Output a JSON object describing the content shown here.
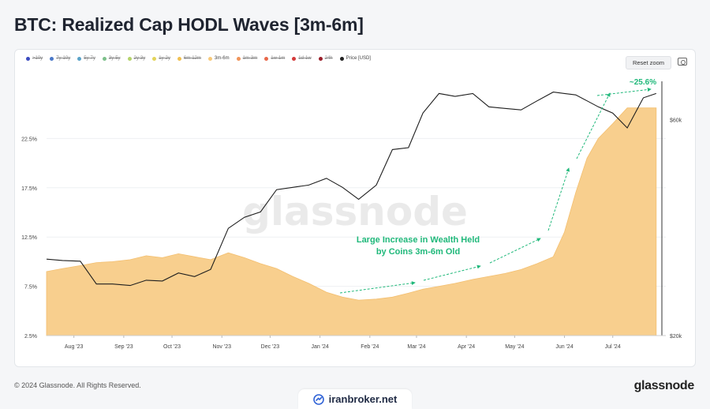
{
  "title": "BTC: Realized Cap HODL Waves [3m-6m]",
  "legend": [
    {
      "label": ">10y",
      "color": "#3b4cc0",
      "enabled": false
    },
    {
      "label": "7y-10y",
      "color": "#4a78c8",
      "enabled": false
    },
    {
      "label": "5y-7y",
      "color": "#5aa3c8",
      "enabled": false
    },
    {
      "label": "3y-5y",
      "color": "#7cc08a",
      "enabled": false
    },
    {
      "label": "2y-3y",
      "color": "#b4d36a",
      "enabled": false
    },
    {
      "label": "1y-2y",
      "color": "#e3d45a",
      "enabled": false
    },
    {
      "label": "6m-12m",
      "color": "#f0c050",
      "enabled": false
    },
    {
      "label": "3m-6m",
      "color": "#f7c97a",
      "enabled": true
    },
    {
      "label": "1m-3m",
      "color": "#f0945a",
      "enabled": false
    },
    {
      "label": "1w-1m",
      "color": "#e8684a",
      "enabled": false
    },
    {
      "label": "1d-1w",
      "color": "#d43a3a",
      "enabled": false
    },
    {
      "label": "24h",
      "color": "#9a1f2a",
      "enabled": false
    },
    {
      "label": "Price [USD]",
      "color": "#222222",
      "enabled": true
    }
  ],
  "reset_zoom_label": "Reset zoom",
  "camera_icon": "camera-icon",
  "watermark": "glassnode",
  "annotation_text": [
    "Large Increase in Wealth Held",
    "by Coins 3m-6m Old"
  ],
  "annotation_value": "~25.6%",
  "footer_copyright": "© 2024 Glassnode. All Rights Reserved.",
  "footer_brand": "glassnode",
  "broker_name": "iranbroker.net",
  "chart_data": {
    "type": "area",
    "x_tick_labels": [
      "Aug '23",
      "Sep '23",
      "Oct '23",
      "Nov '23",
      "Dec '23",
      "Jan '24",
      "Feb '24",
      "Mar '24",
      "Apr '24",
      "May '24",
      "Jun '24",
      "Jul '24"
    ],
    "x": [
      "2023-07-15",
      "2023-07-25",
      "2023-08-05",
      "2023-08-15",
      "2023-08-25",
      "2023-09-05",
      "2023-09-15",
      "2023-09-25",
      "2023-10-05",
      "2023-10-15",
      "2023-10-25",
      "2023-11-05",
      "2023-11-15",
      "2023-11-25",
      "2023-12-05",
      "2023-12-15",
      "2023-12-25",
      "2024-01-05",
      "2024-01-15",
      "2024-01-25",
      "2024-02-05",
      "2024-02-15",
      "2024-02-25",
      "2024-03-05",
      "2024-03-15",
      "2024-03-25",
      "2024-04-05",
      "2024-04-15",
      "2024-04-25",
      "2024-05-05",
      "2024-05-15",
      "2024-05-25",
      "2024-06-01",
      "2024-06-08",
      "2024-06-15",
      "2024-06-22",
      "2024-07-01",
      "2024-07-10",
      "2024-07-20",
      "2024-07-28"
    ],
    "series": [
      {
        "name": "3m-6m",
        "axis": "left",
        "values": [
          9.0,
          9.3,
          9.6,
          9.9,
          10.0,
          10.2,
          10.6,
          10.4,
          10.8,
          10.5,
          10.2,
          10.9,
          10.4,
          9.8,
          9.3,
          8.5,
          7.8,
          6.9,
          6.4,
          6.1,
          6.2,
          6.4,
          6.8,
          7.2,
          7.5,
          7.8,
          8.2,
          8.5,
          8.8,
          9.2,
          9.8,
          10.5,
          13.0,
          17.0,
          20.5,
          22.5,
          24.0,
          25.6,
          25.6,
          25.6
        ]
      },
      {
        "name": "Price [USD]",
        "axis": "right",
        "values": [
          29500,
          29300,
          29200,
          26000,
          26000,
          25800,
          26500,
          26400,
          27500,
          27000,
          28000,
          34500,
          36500,
          37500,
          42000,
          42500,
          43000,
          44500,
          42500,
          40000,
          43000,
          51500,
          52000,
          62000,
          68500,
          67500,
          68500,
          64000,
          63500,
          63000,
          66000,
          69000,
          68500,
          68000,
          66000,
          64000,
          62000,
          57500,
          67000,
          68500
        ]
      }
    ],
    "y_left": {
      "min": 2.5,
      "max": 27.5,
      "ticks": [
        2.5,
        7.5,
        12.5,
        17.5,
        22.5
      ],
      "tick_labels": [
        "2.5%",
        "7.5%",
        "12.5%",
        "17.5%",
        "22.5%"
      ]
    },
    "y_right": {
      "min": 20000,
      "max": 70000,
      "scale": "log",
      "ticks": [
        20000,
        60000
      ],
      "tick_labels": [
        "$20k",
        "$60k"
      ]
    },
    "xlabel": "",
    "ylabel": "",
    "grid": true,
    "legend_placement": "top-left"
  }
}
